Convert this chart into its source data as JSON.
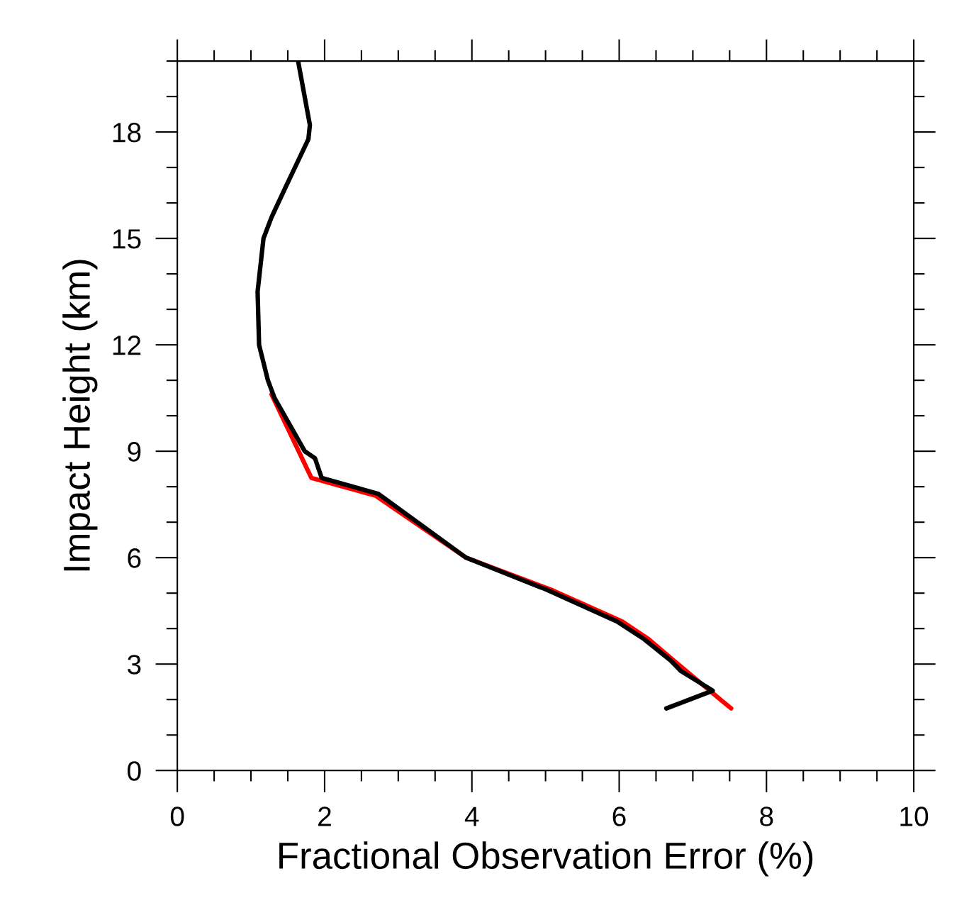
{
  "chart_data": {
    "type": "line",
    "xlabel": "Fractional Observation Error (%)",
    "ylabel": "Impact Height (km)",
    "xlim": [
      0,
      10
    ],
    "ylim": [
      0,
      20
    ],
    "xticks": [
      0,
      2,
      4,
      6,
      8,
      10
    ],
    "yticks": [
      0,
      3,
      6,
      9,
      12,
      15,
      18
    ],
    "grid": false,
    "legend": false,
    "marker": "none",
    "line_style": "solid",
    "series": [
      {
        "color": "#ff0000",
        "x": [
          7.52,
          7.2,
          6.74,
          6.4,
          6.04,
          5.07,
          3.92,
          2.69,
          1.82,
          1.28
        ],
        "values": [
          1.75,
          2.3,
          3.1,
          3.7,
          4.2,
          5.1,
          6.0,
          7.75,
          8.25,
          10.6
        ]
      },
      {
        "color": "#000000",
        "x": [
          6.64,
          7.27,
          6.84,
          6.7,
          6.34,
          5.97,
          5.01,
          3.92,
          2.73,
          1.96,
          1.87,
          1.73,
          1.32,
          1.23,
          1.11,
          1.09,
          1.17,
          1.28,
          1.46,
          1.78,
          1.8,
          1.64
        ],
        "values": [
          1.75,
          2.25,
          2.8,
          3.1,
          3.7,
          4.2,
          5.1,
          6.0,
          7.8,
          8.25,
          8.8,
          9,
          10.5,
          11,
          12,
          13.5,
          15,
          15.6,
          16.4,
          17.8,
          18.2,
          20
        ]
      }
    ]
  }
}
